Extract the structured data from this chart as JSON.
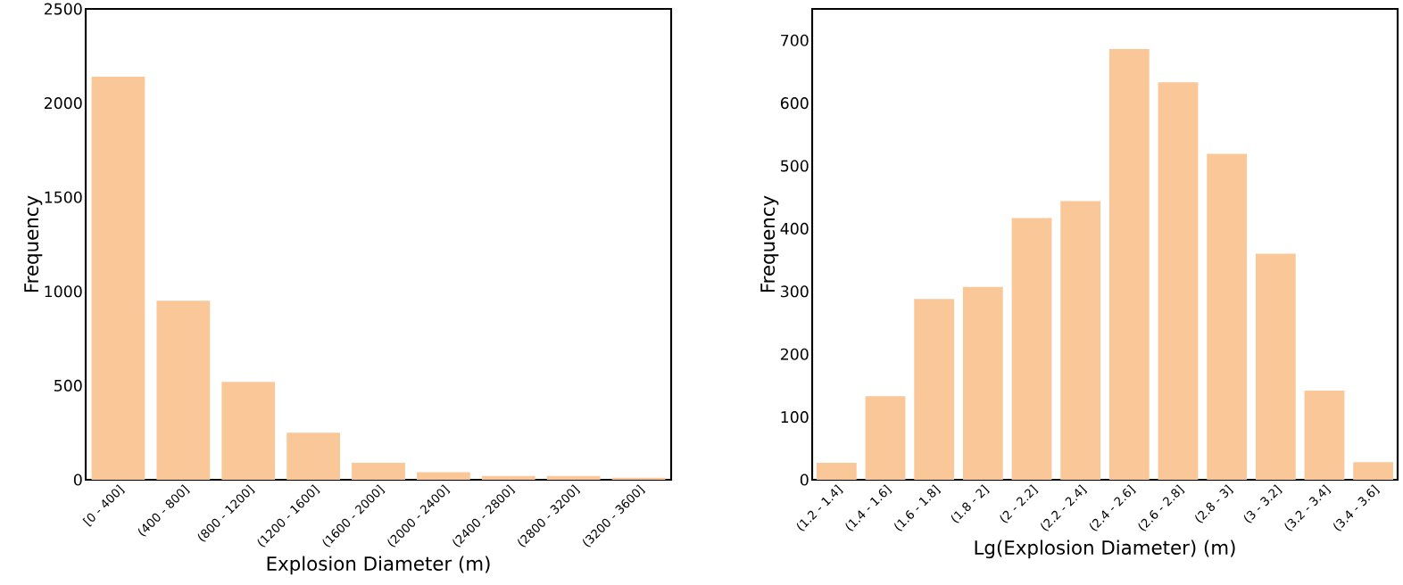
{
  "chart_data": [
    {
      "type": "bar",
      "xlabel": "Explosion Diameter (m)",
      "ylabel": "Frequency",
      "color": "#fac898",
      "categories": [
        "[0 - 400]",
        "(400 - 800]",
        "(800 - 1200]",
        "(1200 - 1600]",
        "(1600 - 2000]",
        "(2000 - 2400]",
        "(2400 - 2800]",
        "(2800 - 3200]",
        "(3200 - 3600]"
      ],
      "values": [
        2140,
        950,
        520,
        250,
        90,
        40,
        20,
        20,
        10
      ],
      "ylim": [
        0,
        2500
      ],
      "yticks": [
        0,
        500,
        1000,
        1500,
        2000,
        2500
      ],
      "grid": false
    },
    {
      "type": "bar",
      "xlabel": "Lg(Explosion Diameter) (m)",
      "ylabel": "Frequency",
      "color": "#fac898",
      "categories": [
        "(1.2 - 1.4]",
        "(1.4 - 1.6]",
        "(1.6 - 1.8]",
        "(1.8 - 2]",
        "(2 - 2.2]",
        "(2.2 - 2.4]",
        "(2.4 - 2.6]",
        "(2.6 - 2.8]",
        "(2.8 - 3]",
        "(3 - 3.2]",
        "(3.2 - 3.4]",
        "(3.4 - 3.6]"
      ],
      "values": [
        27,
        133,
        288,
        307,
        417,
        444,
        686,
        633,
        519,
        360,
        142,
        28
      ],
      "ylim": [
        0,
        750
      ],
      "yticks": [
        0,
        100,
        200,
        300,
        400,
        500,
        600,
        700
      ],
      "grid": false
    }
  ]
}
